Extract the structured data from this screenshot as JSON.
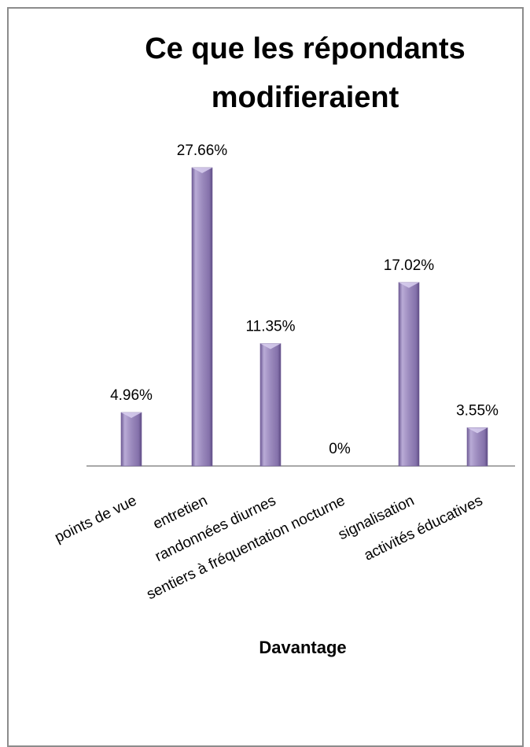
{
  "chart_data": {
    "type": "bar",
    "title_lines": [
      "Ce que les répondants",
      "modifieraient"
    ],
    "xlabel": "Davantage",
    "ylabel": "",
    "categories": [
      "points de vue",
      "entretien",
      "randonnées diurnes",
      "sentiers à fréquentation nocturne",
      "signalisation",
      "activités éducatives"
    ],
    "values": [
      4.96,
      27.66,
      11.35,
      0,
      17.02,
      3.55
    ],
    "data_labels": [
      "4.96%",
      "27.66%",
      "11.35%",
      "0%",
      "17.02%",
      "3.55%"
    ],
    "ylim": [
      0,
      30
    ],
    "grid": false,
    "legend": "none",
    "colors": {
      "bar_main": "#9c8bbe",
      "bar_light": "#c7bce0",
      "bar_dark": "#6f5c96",
      "axis": "#8c8c8c"
    }
  }
}
